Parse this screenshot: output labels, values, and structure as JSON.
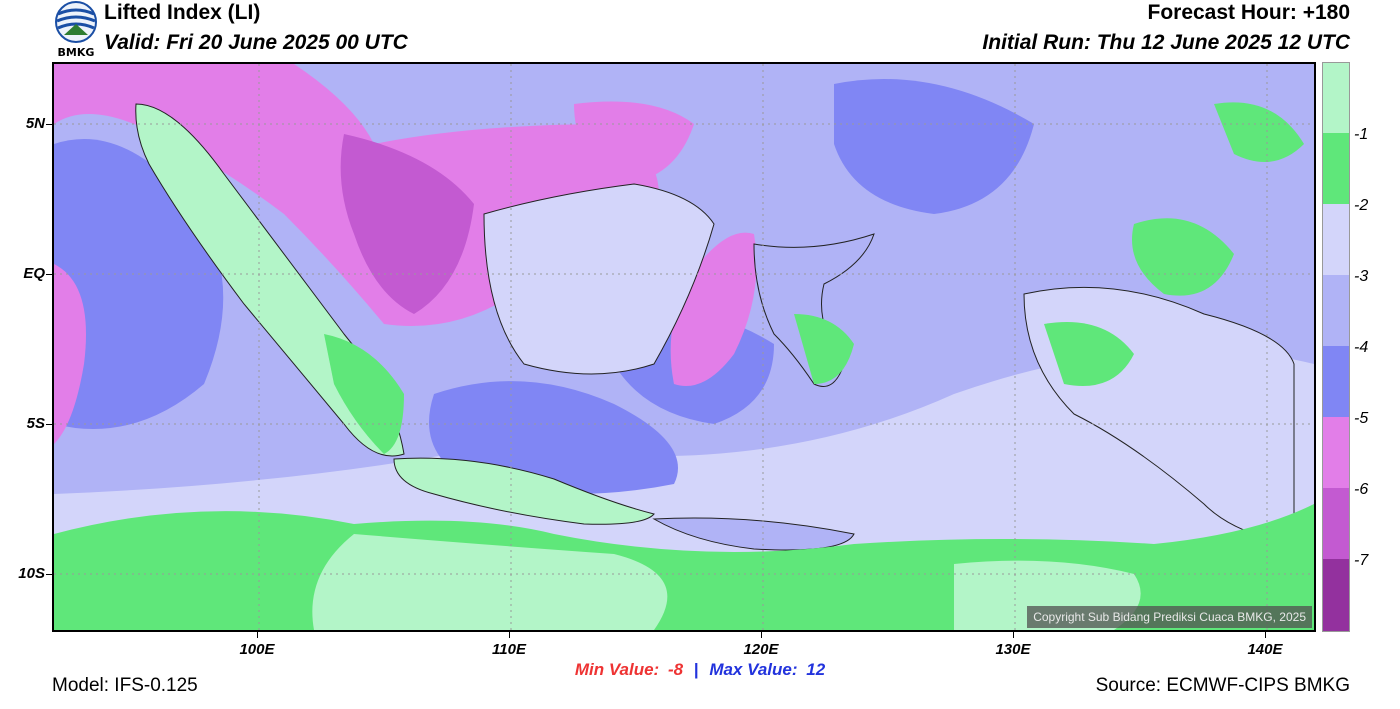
{
  "header": {
    "title": "Lifted Index (LI)",
    "valid": "Valid: Fri 20 June 2025 00 UTC",
    "forecast_hour": "Forecast Hour: +180",
    "initial_run": "Initial Run: Thu 12 June 2025 12 UTC"
  },
  "logo": {
    "text": "BMKG",
    "icon": "bmkg-logo-icon"
  },
  "map": {
    "lat_labels": [
      "5N",
      "EQ",
      "5S",
      "10S"
    ],
    "lon_labels": [
      "100E",
      "110E",
      "120E",
      "130E",
      "140E"
    ],
    "copyright": "Copyright Sub Bidang Prediksi Cuaca BMKG, 2025"
  },
  "colorbar": {
    "labels": [
      "-1",
      "-2",
      "-3",
      "-4",
      "-5",
      "-6",
      "-7"
    ],
    "colors": [
      "#b3f5c8",
      "#5fe77a",
      "#d3d5fa",
      "#b0b3f6",
      "#8086f4",
      "#e27ee8",
      "#c35ad1",
      "#93319e"
    ]
  },
  "stats": {
    "min_label": "Min Value:",
    "min_value": "-8",
    "separator": "|",
    "max_label": "Max Value:",
    "max_value": "12"
  },
  "footer": {
    "model": "Model: IFS-0.125",
    "source": "Source: ECMWF-CIPS BMKG"
  }
}
